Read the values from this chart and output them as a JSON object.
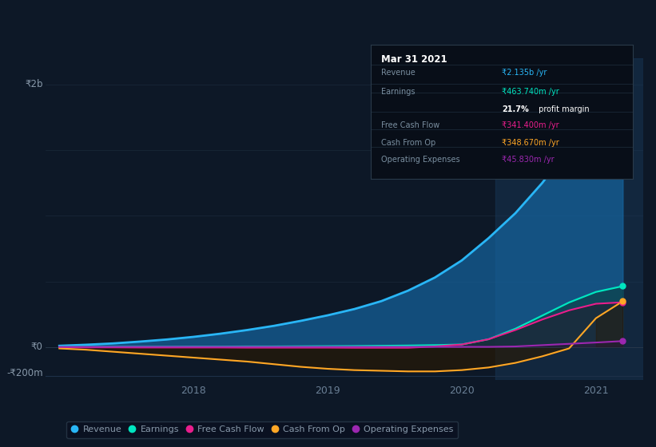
{
  "bg_color": "#0d1827",
  "plot_bg_color": "#0d1827",
  "grid_color": "#1a2a3a",
  "title_date": "Mar 31 2021",
  "x_years": [
    2017.0,
    2017.2,
    2017.4,
    2017.6,
    2017.8,
    2018.0,
    2018.2,
    2018.4,
    2018.6,
    2018.8,
    2019.0,
    2019.2,
    2019.4,
    2019.6,
    2019.8,
    2020.0,
    2020.2,
    2020.4,
    2020.6,
    2020.8,
    2021.0,
    2021.2
  ],
  "revenue": [
    10,
    18,
    28,
    42,
    58,
    78,
    102,
    130,
    162,
    200,
    242,
    290,
    350,
    430,
    530,
    660,
    830,
    1020,
    1250,
    1520,
    1820,
    2135
  ],
  "earnings": [
    2,
    2,
    3,
    3,
    3,
    4,
    4,
    5,
    5,
    6,
    7,
    8,
    10,
    12,
    15,
    20,
    60,
    140,
    240,
    340,
    420,
    464
  ],
  "free_cash": [
    -2,
    -2,
    -2,
    -3,
    -3,
    -3,
    -3,
    -4,
    -4,
    -4,
    -4,
    -5,
    -5,
    -5,
    5,
    20,
    60,
    130,
    210,
    280,
    330,
    341
  ],
  "cash_from_op": [
    -10,
    -20,
    -35,
    -50,
    -65,
    -80,
    -95,
    -110,
    -130,
    -150,
    -165,
    -175,
    -180,
    -185,
    -185,
    -175,
    -155,
    -120,
    -70,
    -10,
    220,
    349
  ],
  "op_expenses": [
    2,
    2,
    2,
    2,
    2,
    2,
    2,
    2,
    2,
    2,
    2,
    2,
    2,
    2,
    2,
    2,
    2,
    5,
    15,
    25,
    35,
    46
  ],
  "xlim": [
    2016.9,
    2021.35
  ],
  "ylim": [
    -250,
    2200
  ],
  "y_labels": [
    {
      "value": 2000,
      "text": "₹2b"
    },
    {
      "value": 0,
      "text": "₹0"
    },
    {
      "value": -200,
      "text": "-₹200m"
    }
  ],
  "xticks": [
    2018,
    2019,
    2020,
    2021
  ],
  "colors": {
    "revenue": "#29b6f6",
    "earnings": "#00e5c0",
    "free_cash": "#e91e8c",
    "cash_from_op": "#ffa726",
    "op_expenses": "#9c27b0"
  },
  "fill_colors": {
    "revenue": "#1565a0",
    "earnings": "#0a4040",
    "free_cash_neg": "#2a0a18",
    "cash_from_op_neg": "#2a1800",
    "cash_from_op_pos": "#2a1800",
    "op_expenses": "#1a0a2a"
  },
  "highlight_x_start": 2020.25,
  "highlight_x_end": 2021.35,
  "highlight_color": "#1a3a5c",
  "legend": [
    {
      "label": "Revenue",
      "color": "#29b6f6"
    },
    {
      "label": "Earnings",
      "color": "#00e5c0"
    },
    {
      "label": "Free Cash Flow",
      "color": "#e91e8c"
    },
    {
      "label": "Cash From Op",
      "color": "#ffa726"
    },
    {
      "label": "Operating Expenses",
      "color": "#9c27b0"
    }
  ],
  "info_box": {
    "title": "Mar 31 2021",
    "rows": [
      {
        "label": "Revenue",
        "value": "₹2.135b /yr",
        "color": "#29b6f6"
      },
      {
        "label": "Earnings",
        "value": "₹463.740m /yr",
        "color": "#00e5c0"
      },
      {
        "label": "",
        "value": "21.7% profit margin",
        "color": "white",
        "bold_prefix": "21.7%"
      },
      {
        "label": "Free Cash Flow",
        "value": "₹341.400m /yr",
        "color": "#e91e8c"
      },
      {
        "label": "Cash From Op",
        "value": "₹348.670m /yr",
        "color": "#ffa726"
      },
      {
        "label": "Operating Expenses",
        "value": "₹45.830m /yr",
        "color": "#9c27b0"
      }
    ]
  }
}
